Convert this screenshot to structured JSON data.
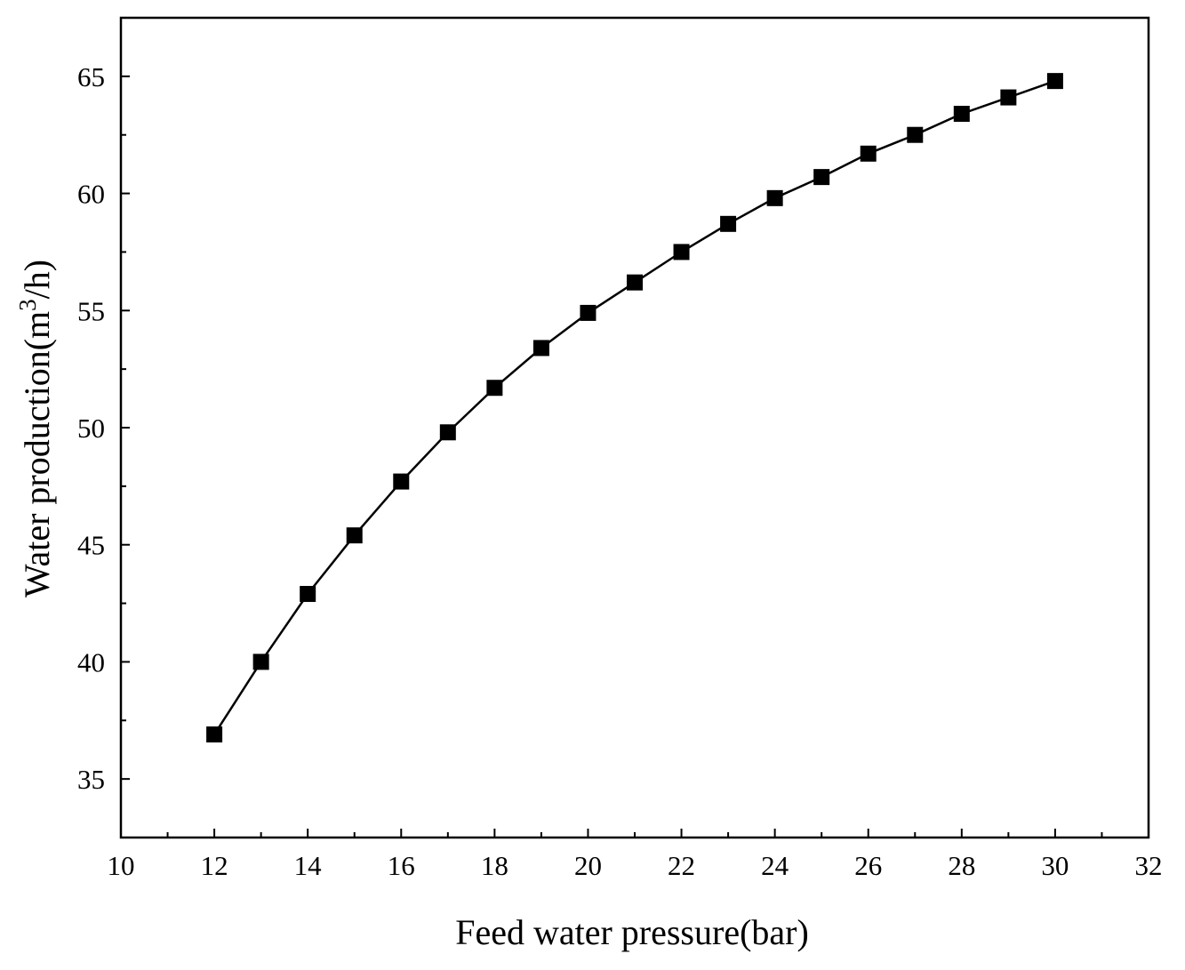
{
  "chart_data": {
    "type": "line",
    "title": "",
    "xlabel": "Feed water pressure(bar)",
    "ylabel": {
      "prefix": "Water production(m",
      "superscript": "3",
      "suffix": "/h)"
    },
    "xlim": [
      10,
      32
    ],
    "ylim": [
      32.5,
      67.5
    ],
    "xticks": [
      10,
      12,
      14,
      16,
      18,
      20,
      22,
      24,
      26,
      28,
      30,
      32
    ],
    "yticks": [
      35,
      40,
      45,
      50,
      55,
      60,
      65
    ],
    "grid": false,
    "marker": "square",
    "series": [
      {
        "name": "Water production",
        "color": "#000000",
        "x": [
          12,
          13,
          14,
          15,
          16,
          17,
          18,
          19,
          20,
          21,
          22,
          23,
          24,
          25,
          26,
          27,
          28,
          29,
          30
        ],
        "y": [
          36.9,
          40.0,
          42.9,
          45.4,
          47.7,
          49.8,
          51.7,
          53.4,
          54.9,
          56.2,
          57.5,
          58.7,
          59.8,
          60.7,
          61.7,
          62.5,
          63.4,
          64.1,
          64.8
        ]
      }
    ]
  }
}
